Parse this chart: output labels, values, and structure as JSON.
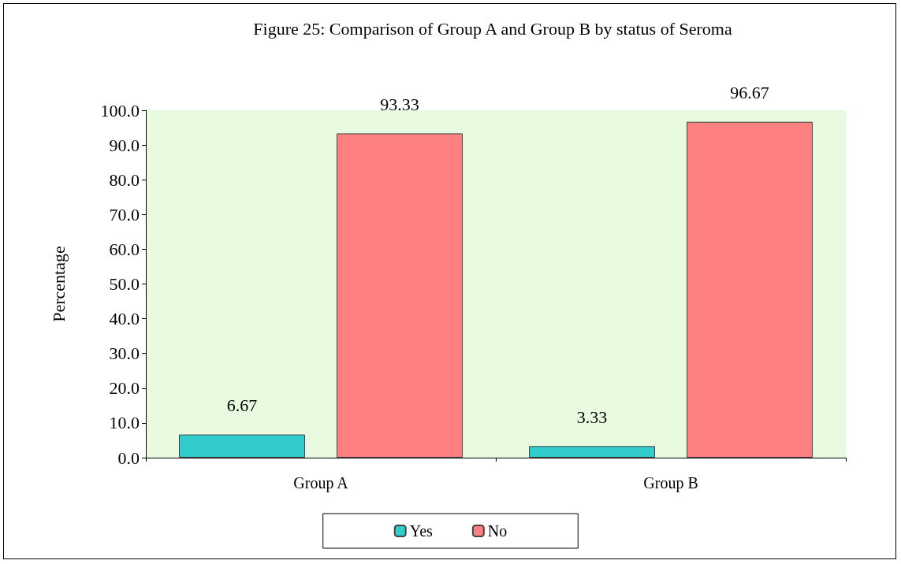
{
  "chart_data": {
    "type": "bar",
    "title": "Figure 25: Comparison of Group A and Group B by status of Seroma",
    "ylabel": "Percentage",
    "categories": [
      "Group A",
      "Group B"
    ],
    "series": [
      {
        "name": "Yes",
        "color": "#33cccc",
        "values": [
          6.67,
          3.33
        ]
      },
      {
        "name": "No",
        "color": "#ff8080",
        "values": [
          93.33,
          96.67
        ]
      }
    ],
    "ylim": [
      0,
      100
    ],
    "yticks": [
      {
        "value": 0,
        "label": "0.0"
      },
      {
        "value": 10,
        "label": "10.0"
      },
      {
        "value": 20,
        "label": "20.0"
      },
      {
        "value": 30,
        "label": "30.0"
      },
      {
        "value": 40,
        "label": "40.0"
      },
      {
        "value": 50,
        "label": "50.0"
      },
      {
        "value": 60,
        "label": "60.0"
      },
      {
        "value": 70,
        "label": "70.0"
      },
      {
        "value": 80,
        "label": "80.0"
      },
      {
        "value": 90,
        "label": "90.0"
      },
      {
        "value": 100,
        "label": "100.0"
      }
    ],
    "data_labels": true,
    "legend": "bottom",
    "grid": false
  }
}
